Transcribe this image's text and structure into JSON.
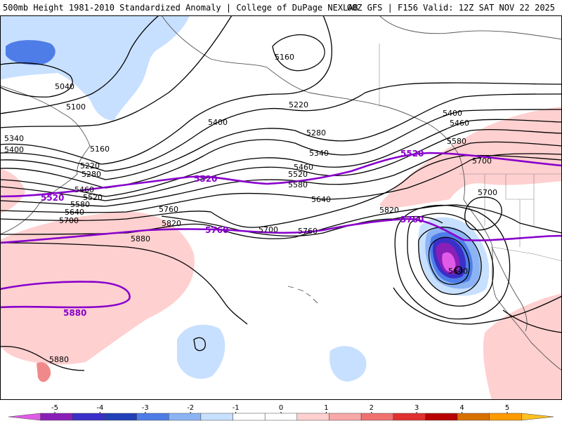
{
  "header": {
    "title_left": "500mb Height 1981-2010 Standardized Anomaly | College of DuPage NEXLAB",
    "title_right": "00Z GFS | F156 Valid: 12Z SAT NOV 22 2025"
  },
  "map": {
    "contour_labels": [
      "5040",
      "5100",
      "5160",
      "5160",
      "5220",
      "5220",
      "5280",
      "5280",
      "5340",
      "5340",
      "5400",
      "5400",
      "5400",
      "5460",
      "5460",
      "5460",
      "5520",
      "5520",
      "5580",
      "5580",
      "5580",
      "5640",
      "5640",
      "5640",
      "5700",
      "5700",
      "5700",
      "5700",
      "5760",
      "5760",
      "5820",
      "5820",
      "5880",
      "5880"
    ],
    "highlight_labels": [
      "5520",
      "5520",
      "5520",
      "5760",
      "5760",
      "5880"
    ],
    "colors": {
      "contour": "#000000",
      "highlight": "#8800cc",
      "neg1": "#c8e0ff",
      "neg2": "#8cb4f5",
      "neg3": "#4f7de8",
      "neg4": "#3a2fc8",
      "neg5": "#8a1fb8",
      "neg6": "#e05ce8",
      "pos1": "#ffd0d0",
      "pos2": "#f08a8a"
    }
  },
  "colorbar": {
    "ticks": [
      "-5",
      "-4",
      "-3",
      "-2",
      "-1",
      "0",
      "1",
      "2",
      "3",
      "4",
      "5"
    ],
    "segment_colors": [
      "#e05ce8",
      "#8a1fb8",
      "#3a2fc8",
      "#2040b8",
      "#4f7de8",
      "#8cb4f5",
      "#c8e0ff",
      "#ffffff",
      "#ffffff",
      "#ffd0d0",
      "#f8a8a8",
      "#f07070",
      "#e03030",
      "#b80000",
      "#d87000",
      "#ff9a00",
      "#ffc020"
    ]
  }
}
